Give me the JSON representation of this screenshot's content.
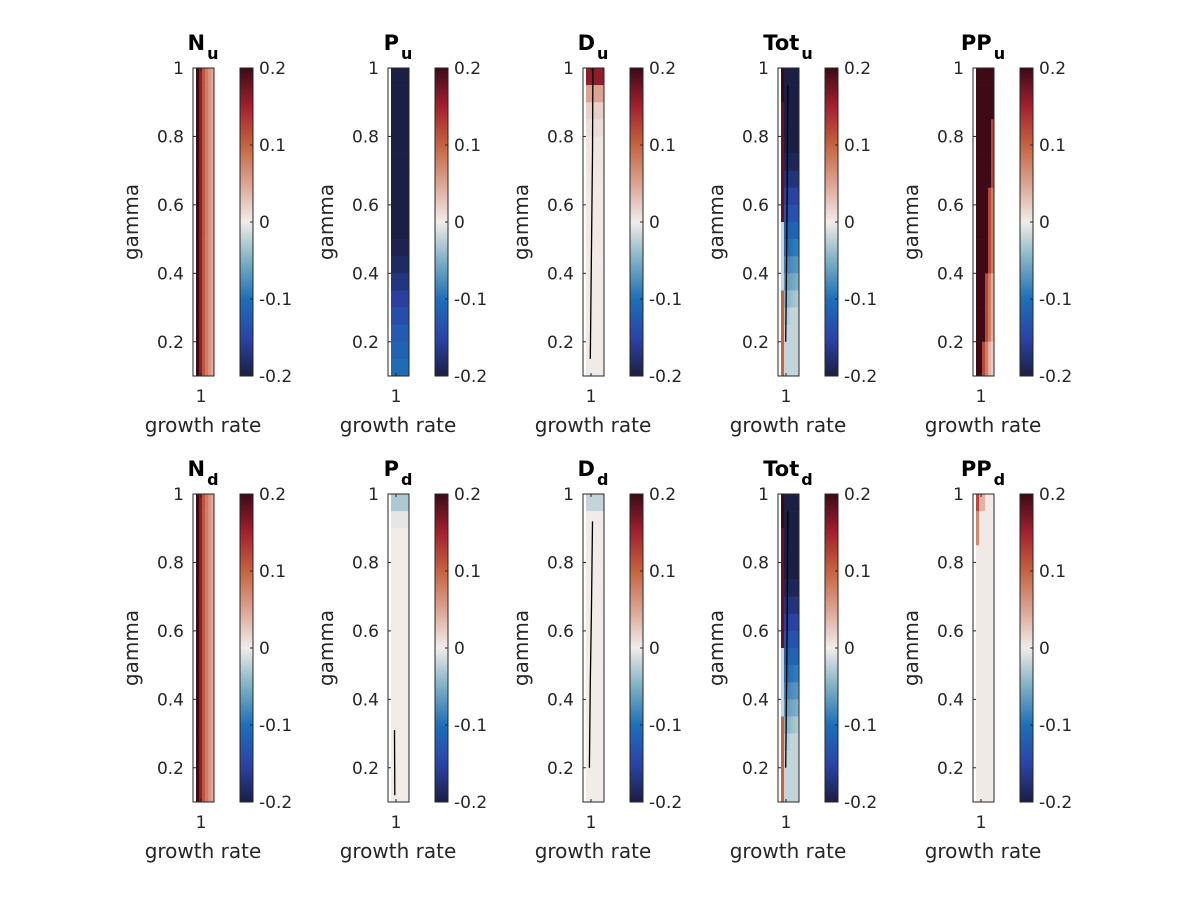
{
  "figure": {
    "background": "#ffffff",
    "colormap_name": "balance (diverging blue-white-red)"
  },
  "chart_data": {
    "type": "heatmap",
    "layout": "2 rows x 5 columns of subplots, each with its own colorbar",
    "shared": {
      "xlabel": "growth rate",
      "ylabel": "gamma",
      "x_ticks": [
        "1"
      ],
      "y_ticks": [
        "0.2",
        "0.4",
        "0.6",
        "0.8",
        "1"
      ],
      "y_tick_values": [
        0.2,
        0.4,
        0.6,
        0.8,
        1.0
      ],
      "ylim": [
        0.1,
        1.0
      ],
      "clim": [
        -0.2,
        0.2
      ],
      "colorbar_ticks": [
        "-0.2",
        "-0.1",
        "0",
        "0.1",
        "0.2"
      ],
      "colorbar_tick_values": [
        -0.2,
        -0.1,
        0,
        0.1,
        0.2
      ],
      "colormap": [
        [
          -0.2,
          "#1b1f44"
        ],
        [
          -0.15,
          "#2a44a8"
        ],
        [
          -0.1,
          "#1d6fb8"
        ],
        [
          -0.05,
          "#7fb0c4"
        ],
        [
          0.0,
          "#f1ecea"
        ],
        [
          0.05,
          "#dca392"
        ],
        [
          0.1,
          "#c5633f"
        ],
        [
          0.15,
          "#a3202f"
        ],
        [
          0.2,
          "#3d0a16"
        ]
      ],
      "rows_gamma": [
        1.0,
        0.95,
        0.9,
        0.85,
        0.8,
        0.75,
        0.7,
        0.65,
        0.6,
        0.55,
        0.5,
        0.45,
        0.4,
        0.35,
        0.3,
        0.25,
        0.2,
        0.15
      ],
      "n_columns": 7
    },
    "panels": [
      {
        "id": "N_u",
        "title": "N",
        "subscript": "u",
        "grid_rule": "columns",
        "column_values": [
          null,
          0.2,
          0.16,
          0.11,
          0.08,
          0.06,
          0.045
        ],
        "contour": []
      },
      {
        "id": "P_u",
        "title": "P",
        "subscript": "u",
        "grid_rule": "rows",
        "row_values": [
          -0.2,
          -0.2,
          -0.2,
          -0.2,
          -0.2,
          -0.2,
          -0.2,
          -0.2,
          -0.2,
          -0.2,
          -0.195,
          -0.185,
          -0.17,
          -0.155,
          -0.14,
          -0.125,
          -0.115,
          -0.105
        ],
        "contour": []
      },
      {
        "id": "D_u",
        "title": "D",
        "subscript": "u",
        "grid_rule": "rows",
        "row_values": [
          0.16,
          0.05,
          0.02,
          0.01,
          0.005,
          0.004,
          0.003,
          0.002,
          0.002,
          0.002,
          0.002,
          0.001,
          0.001,
          0.001,
          0.001,
          0.001,
          0.001,
          0.001
        ],
        "contour": [
          [
            1.0,
            0.97
          ],
          [
            0.75,
            0.875
          ],
          [
            0.45,
            0.595
          ],
          [
            0.15,
            0.33
          ]
        ]
      },
      {
        "id": "Tot_u",
        "title": "Tot",
        "subscript": "u",
        "grid_rule": "tot",
        "contour": [
          [
            0.95,
            0.96
          ],
          [
            0.6,
            0.77
          ],
          [
            0.2,
            0.43
          ]
        ]
      },
      {
        "id": "PP_u",
        "title": "PP",
        "subscript": "u",
        "grid_rule": "pp",
        "contour": []
      },
      {
        "id": "N_d",
        "title": "N",
        "subscript": "d",
        "grid_rule": "columns",
        "column_values": [
          null,
          0.2,
          0.16,
          0.11,
          0.08,
          0.06,
          0.045
        ],
        "contour": []
      },
      {
        "id": "P_d",
        "title": "P",
        "subscript": "d",
        "grid_rule": "rows",
        "row_values": [
          -0.03,
          -0.005,
          0.0,
          0.0,
          0.0,
          0.0,
          0.0,
          0.0,
          0.0,
          0.0,
          0.0,
          0.0,
          0.0,
          0.0,
          0.0,
          0.0,
          0.0,
          0.0
        ],
        "contour": [
          [
            0.31,
            0.125
          ],
          [
            0.12,
            0.2
          ]
        ]
      },
      {
        "id": "D_d",
        "title": "D",
        "subscript": "d",
        "grid_rule": "rows",
        "row_values": [
          -0.02,
          0.0,
          0.0,
          0.0,
          0.0,
          0.0,
          0.0,
          0.0,
          0.0,
          0.0,
          0.0,
          0.0,
          0.0,
          0.0,
          0.0,
          0.0,
          0.0,
          0.0
        ],
        "contour": [
          [
            0.92,
            0.87
          ],
          [
            0.65,
            0.595
          ],
          [
            0.45,
            0.33
          ],
          [
            0.2,
            0.1
          ]
        ]
      },
      {
        "id": "Tot_d",
        "title": "Tot",
        "subscript": "d",
        "grid_rule": "tot",
        "contour": [
          [
            0.95,
            0.96
          ],
          [
            0.6,
            0.77
          ],
          [
            0.2,
            0.43
          ]
        ]
      },
      {
        "id": "PP_d",
        "title": "PP",
        "subscript": "d",
        "grid_rule": "pp_d",
        "contour": []
      }
    ]
  }
}
